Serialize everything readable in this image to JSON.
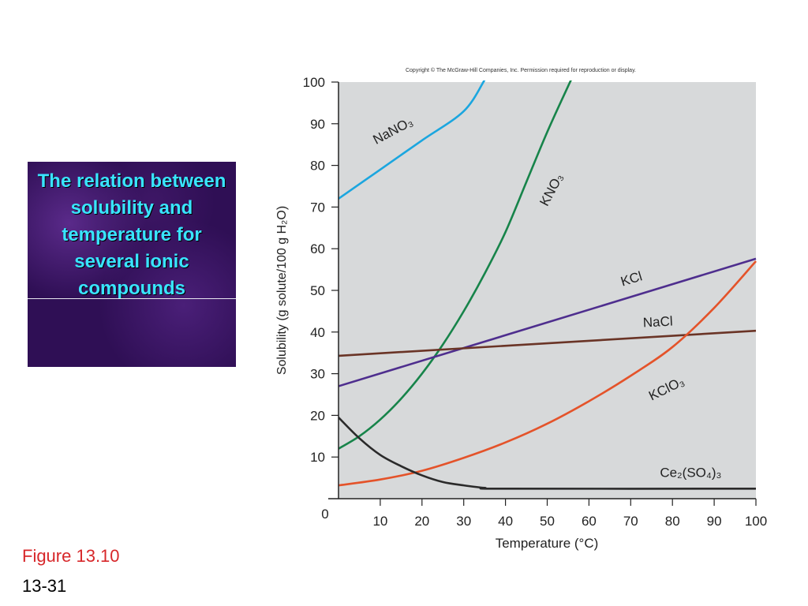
{
  "slide": {
    "title": "The relation between solubility and temperature for several ionic compounds",
    "figure_label": "Figure 13.10",
    "page_number": "13-31"
  },
  "chart_data": {
    "type": "line",
    "copyright": "Copyright © The McGraw-Hill Companies, Inc. Permission required for reproduction or display.",
    "xlabel": "Temperature (°C)",
    "ylabel": "Solubility (g solute/100 g H₂O)",
    "xlim": [
      0,
      100
    ],
    "ylim": [
      0,
      100
    ],
    "xticks": [
      "0",
      "10",
      "20",
      "30",
      "40",
      "50",
      "60",
      "70",
      "80",
      "90",
      "100"
    ],
    "yticks": [
      "10",
      "20",
      "30",
      "40",
      "50",
      "60",
      "70",
      "80",
      "90",
      "100"
    ],
    "background": "#d7d9da",
    "series": [
      {
        "name": "NaNO₃",
        "color": "#1ba6df",
        "x": [
          0,
          10,
          20,
          30,
          35
        ],
        "y": [
          72,
          79,
          86,
          93,
          100.5
        ]
      },
      {
        "name": "KNO₃",
        "color": "#17844a",
        "x": [
          0,
          5,
          10,
          15,
          20,
          25,
          30,
          35,
          40,
          45,
          50,
          55,
          56
        ],
        "y": [
          12,
          15,
          19,
          24,
          30,
          37,
          45,
          54,
          64,
          76,
          88,
          99,
          101
        ]
      },
      {
        "name": "KCl",
        "color": "#4e2e8e",
        "x": [
          0,
          100
        ],
        "y": [
          27,
          57.6
        ]
      },
      {
        "name": "NaCl",
        "color": "#6a3426",
        "x": [
          0,
          100
        ],
        "y": [
          34.3,
          40.3
        ]
      },
      {
        "name": "KClO₃",
        "color": "#e4532a",
        "x": [
          0,
          10,
          20,
          30,
          40,
          50,
          60,
          70,
          80,
          90,
          100
        ],
        "y": [
          3.2,
          4.6,
          6.7,
          9.8,
          13.5,
          18,
          23.4,
          29.5,
          36.4,
          45.8,
          57
        ]
      },
      {
        "name": "Ce₂(SO₄)₃",
        "color": "#2a2a2a",
        "x": [
          0,
          5,
          10,
          15,
          20,
          25,
          30,
          35,
          40,
          100
        ],
        "y": [
          19.5,
          14.5,
          10.5,
          7.8,
          5.6,
          4,
          3.2,
          2.6,
          2.4,
          2.4
        ]
      }
    ]
  }
}
